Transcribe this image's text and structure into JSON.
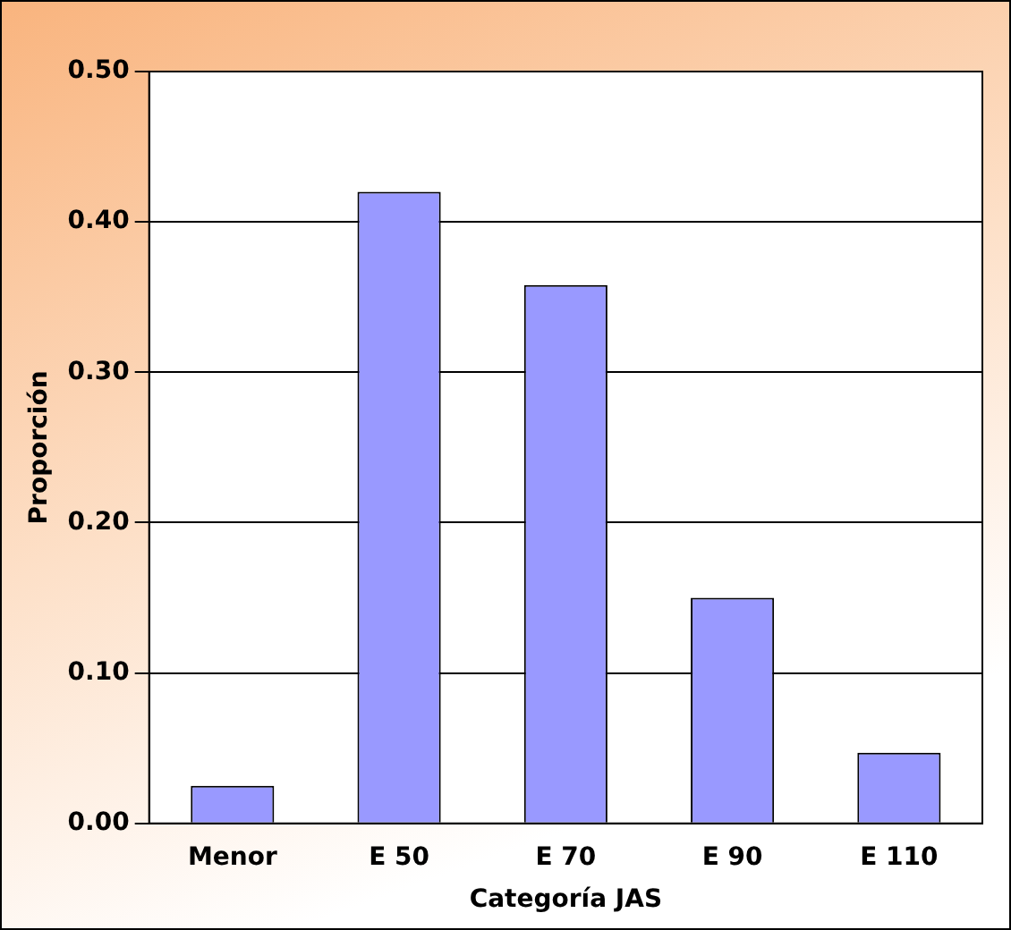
{
  "chart_data": {
    "type": "bar",
    "xlabel": "Categoría JAS",
    "ylabel": "Proporción",
    "categories": [
      "Menor",
      "E 50",
      "E 70",
      "E 90",
      "E 110"
    ],
    "values": [
      0.025,
      0.42,
      0.358,
      0.15,
      0.047
    ],
    "color": "#9999ff",
    "ylim": [
      0,
      0.5
    ],
    "yticks": [
      {
        "value": 0,
        "label": "0.00"
      },
      {
        "value": 0.1,
        "label": "0.10"
      },
      {
        "value": 0.2,
        "label": "0.20"
      },
      {
        "value": 0.3,
        "label": "0.30"
      },
      {
        "value": 0.4,
        "label": "0.40"
      },
      {
        "value": 0.5,
        "label": "0.50"
      }
    ],
    "grid": "y",
    "legend": false
  }
}
